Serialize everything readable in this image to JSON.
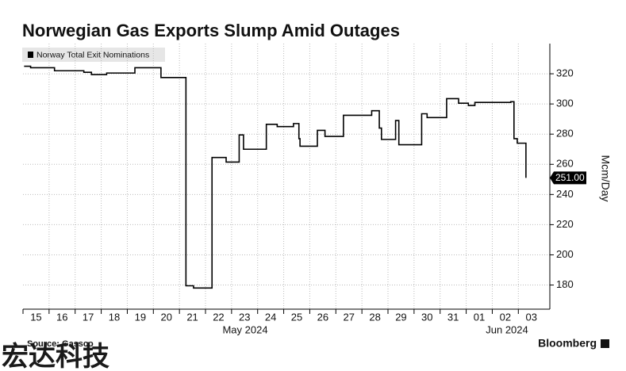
{
  "chart_data": {
    "type": "line",
    "step": "post",
    "title": "Norwegian Gas Exports Slump Amid Outages",
    "y_label": "Mcm/Day",
    "source": "Source: Gassco",
    "brand": "Bloomberg",
    "watermark": "宏达科技",
    "month_labels": [
      "May 2024",
      "Jun 2024"
    ],
    "grid": true,
    "x": [
      "2024-05-15T01:00",
      "2024-05-15T07:00",
      "2024-05-16T05:00",
      "2024-05-17T08:00",
      "2024-05-17T15:00",
      "2024-05-18T05:00",
      "2024-05-19T07:00",
      "2024-05-20T07:00",
      "2024-05-21T06:00",
      "2024-05-21T13:00",
      "2024-05-22T06:00",
      "2024-05-22T19:00",
      "2024-05-23T07:00",
      "2024-05-23T11:00",
      "2024-05-24T08:00",
      "2024-05-24T18:00",
      "2024-05-25T09:00",
      "2024-05-25T14:00",
      "2024-05-25T15:00",
      "2024-05-26T07:00",
      "2024-05-26T14:00",
      "2024-05-27T07:00",
      "2024-05-28T09:00",
      "2024-05-28T16:00",
      "2024-05-28T18:00",
      "2024-05-29T07:00",
      "2024-05-29T10:00",
      "2024-05-30T07:00",
      "2024-05-30T12:00",
      "2024-05-31T06:00",
      "2024-05-31T17:00",
      "2024-06-01T02:00",
      "2024-06-01T08:00",
      "2024-06-02T17:00",
      "2024-06-02T20:00",
      "2024-06-02T23:00",
      "2024-06-03T07:00"
    ],
    "series": [
      {
        "name": "Norway Total Exit Nominations",
        "color": "#000000",
        "values": [
          325,
          324,
          322,
          321,
          319.5,
          320.5,
          324,
          317.5,
          179.5,
          178,
          264.5,
          261.5,
          279.5,
          270,
          286.5,
          285,
          287,
          277,
          272,
          282.5,
          278.5,
          292.5,
          295.5,
          284,
          276.5,
          289,
          273,
          293.5,
          291,
          303.5,
          300.5,
          299,
          301,
          301.5,
          277,
          274,
          251
        ],
        "value_labels": [
          null,
          null,
          null,
          null,
          null,
          null,
          null,
          null,
          null,
          null,
          null,
          null,
          null,
          null,
          null,
          null,
          null,
          null,
          null,
          null,
          null,
          null,
          null,
          null,
          null,
          null,
          null,
          null,
          null,
          null,
          null,
          null,
          null,
          null,
          null,
          null,
          "251.00"
        ]
      }
    ],
    "xlim": [
      "2024-05-15T00:00",
      "2024-06-04T05:00"
    ],
    "xticks": [
      {
        "value": "2024-05-15T00:00",
        "label": "15"
      },
      {
        "value": "2024-05-16T00:00",
        "label": "16"
      },
      {
        "value": "2024-05-17T00:00",
        "label": "17"
      },
      {
        "value": "2024-05-18T00:00",
        "label": "18"
      },
      {
        "value": "2024-05-19T00:00",
        "label": "19"
      },
      {
        "value": "2024-05-20T00:00",
        "label": "20"
      },
      {
        "value": "2024-05-21T00:00",
        "label": "21"
      },
      {
        "value": "2024-05-22T00:00",
        "label": "22"
      },
      {
        "value": "2024-05-23T00:00",
        "label": "23"
      },
      {
        "value": "2024-05-24T00:00",
        "label": "24"
      },
      {
        "value": "2024-05-25T00:00",
        "label": "25"
      },
      {
        "value": "2024-05-26T00:00",
        "label": "26"
      },
      {
        "value": "2024-05-27T00:00",
        "label": "27"
      },
      {
        "value": "2024-05-28T00:00",
        "label": "28"
      },
      {
        "value": "2024-05-29T00:00",
        "label": "29"
      },
      {
        "value": "2024-05-30T00:00",
        "label": "30"
      },
      {
        "value": "2024-05-31T00:00",
        "label": "31"
      },
      {
        "value": "2024-06-01T00:00",
        "label": "01"
      },
      {
        "value": "2024-06-02T00:00",
        "label": "02"
      },
      {
        "value": "2024-06-03T00:00",
        "label": "03"
      }
    ],
    "ylim": [
      164,
      340
    ],
    "yticks": [
      180,
      200,
      220,
      240,
      260,
      280,
      300,
      320
    ]
  }
}
